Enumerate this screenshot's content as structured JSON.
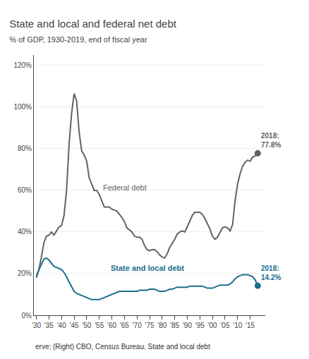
{
  "chart_data": {
    "type": "line",
    "title": "State and local and federal net debt",
    "subtitle": "% of GDP, 1930-2019, end of fiscal year",
    "footnote": "erve; (Right) CBO, Census Bureau. State and local debt",
    "x": [
      1930,
      1931,
      1932,
      1933,
      1934,
      1935,
      1936,
      1937,
      1938,
      1939,
      1940,
      1941,
      1942,
      1943,
      1944,
      1945,
      1946,
      1947,
      1948,
      1949,
      1950,
      1951,
      1952,
      1953,
      1954,
      1955,
      1956,
      1957,
      1958,
      1959,
      1960,
      1961,
      1962,
      1963,
      1964,
      1965,
      1966,
      1967,
      1968,
      1969,
      1970,
      1971,
      1972,
      1973,
      1974,
      1975,
      1976,
      1977,
      1978,
      1979,
      1980,
      1981,
      1982,
      1983,
      1984,
      1985,
      1986,
      1987,
      1988,
      1989,
      1990,
      1991,
      1992,
      1993,
      1994,
      1995,
      1996,
      1997,
      1998,
      1999,
      2000,
      2001,
      2002,
      2003,
      2004,
      2005,
      2006,
      2007,
      2008,
      2009,
      2010,
      2011,
      2012,
      2013,
      2014,
      2015,
      2016,
      2017,
      2018
    ],
    "series": [
      {
        "name": "Federal debt",
        "color": "#636363",
        "marker": "circle",
        "annotation": "2018:\n77.8%",
        "values": [
          18.0,
          22.0,
          28.0,
          35.0,
          38.0,
          38.5,
          40.0,
          38.5,
          40.5,
          42.5,
          43.0,
          48.0,
          60.0,
          82.0,
          97.0,
          106.5,
          103.0,
          88.0,
          79.0,
          77.0,
          74.0,
          66.0,
          63.0,
          60.0,
          60.0,
          58.0,
          55.0,
          52.0,
          52.0,
          52.0,
          51.0,
          50.5,
          50.0,
          48.5,
          47.0,
          45.0,
          42.0,
          41.0,
          40.0,
          38.0,
          37.5,
          37.5,
          36.5,
          33.5,
          31.5,
          31.0,
          31.5,
          31.5,
          30.5,
          29.0,
          28.0,
          27.5,
          29.5,
          32.5,
          34.5,
          36.5,
          39.0,
          40.0,
          40.5,
          40.0,
          42.5,
          45.5,
          48.0,
          49.5,
          49.5,
          49.5,
          48.5,
          46.5,
          44.0,
          41.5,
          38.0,
          36.5,
          37.5,
          40.0,
          42.0,
          42.5,
          42.0,
          40.5,
          43.5,
          55.0,
          63.0,
          68.0,
          71.5,
          73.5,
          74.5,
          74.0,
          76.0,
          76.5,
          77.8
        ]
      },
      {
        "name": "State and local debt",
        "color": "#1a6e8e",
        "marker": "circle",
        "annotation": "2018:\n14.2%",
        "values": [
          19.0,
          22.0,
          24.5,
          27.0,
          27.5,
          26.5,
          25.0,
          23.5,
          23.0,
          22.5,
          22.0,
          20.5,
          18.5,
          16.0,
          13.5,
          11.5,
          10.5,
          10.0,
          9.5,
          9.0,
          8.5,
          8.0,
          7.5,
          7.5,
          7.5,
          7.5,
          8.0,
          8.5,
          9.0,
          9.5,
          10.0,
          10.5,
          11.0,
          11.5,
          11.5,
          11.5,
          11.5,
          11.5,
          11.5,
          11.5,
          11.5,
          12.0,
          12.0,
          12.0,
          12.0,
          12.5,
          12.5,
          12.5,
          12.0,
          11.5,
          11.5,
          11.5,
          12.0,
          12.5,
          12.5,
          13.0,
          13.5,
          13.5,
          13.5,
          13.5,
          13.5,
          14.0,
          14.0,
          14.0,
          14.0,
          14.0,
          14.0,
          13.5,
          13.0,
          13.0,
          13.0,
          13.5,
          14.0,
          14.5,
          14.5,
          14.5,
          14.5,
          15.0,
          16.0,
          17.5,
          18.5,
          19.0,
          19.5,
          19.5,
          19.5,
          19.0,
          18.5,
          17.0,
          14.2
        ]
      }
    ],
    "xlim": [
      1929,
      2021
    ],
    "xticks": [
      {
        "value": 1930,
        "label": "'30"
      },
      {
        "value": 1935,
        "label": "'35"
      },
      {
        "value": 1940,
        "label": "'40"
      },
      {
        "value": 1945,
        "label": "'45"
      },
      {
        "value": 1950,
        "label": "'50"
      },
      {
        "value": 1955,
        "label": "'55"
      },
      {
        "value": 1960,
        "label": "'60"
      },
      {
        "value": 1965,
        "label": "'65"
      },
      {
        "value": 1970,
        "label": "'70"
      },
      {
        "value": 1975,
        "label": "'75"
      },
      {
        "value": 1980,
        "label": "'80"
      },
      {
        "value": 1985,
        "label": "'85"
      },
      {
        "value": 1990,
        "label": "'90"
      },
      {
        "value": 1995,
        "label": "'95"
      },
      {
        "value": 2000,
        "label": "'00"
      },
      {
        "value": 2005,
        "label": "'05"
      },
      {
        "value": 2010,
        "label": "'10"
      },
      {
        "value": 2015,
        "label": "'15"
      }
    ],
    "ylim": [
      0,
      125
    ],
    "yticks": [
      {
        "value": 0,
        "label": "0%"
      },
      {
        "value": 20,
        "label": "20%"
      },
      {
        "value": 40,
        "label": "40%"
      },
      {
        "value": 60,
        "label": "60%"
      },
      {
        "value": 80,
        "label": "80%"
      },
      {
        "value": 100,
        "label": "100%"
      },
      {
        "value": 120,
        "label": "120%"
      }
    ],
    "grid": true
  }
}
